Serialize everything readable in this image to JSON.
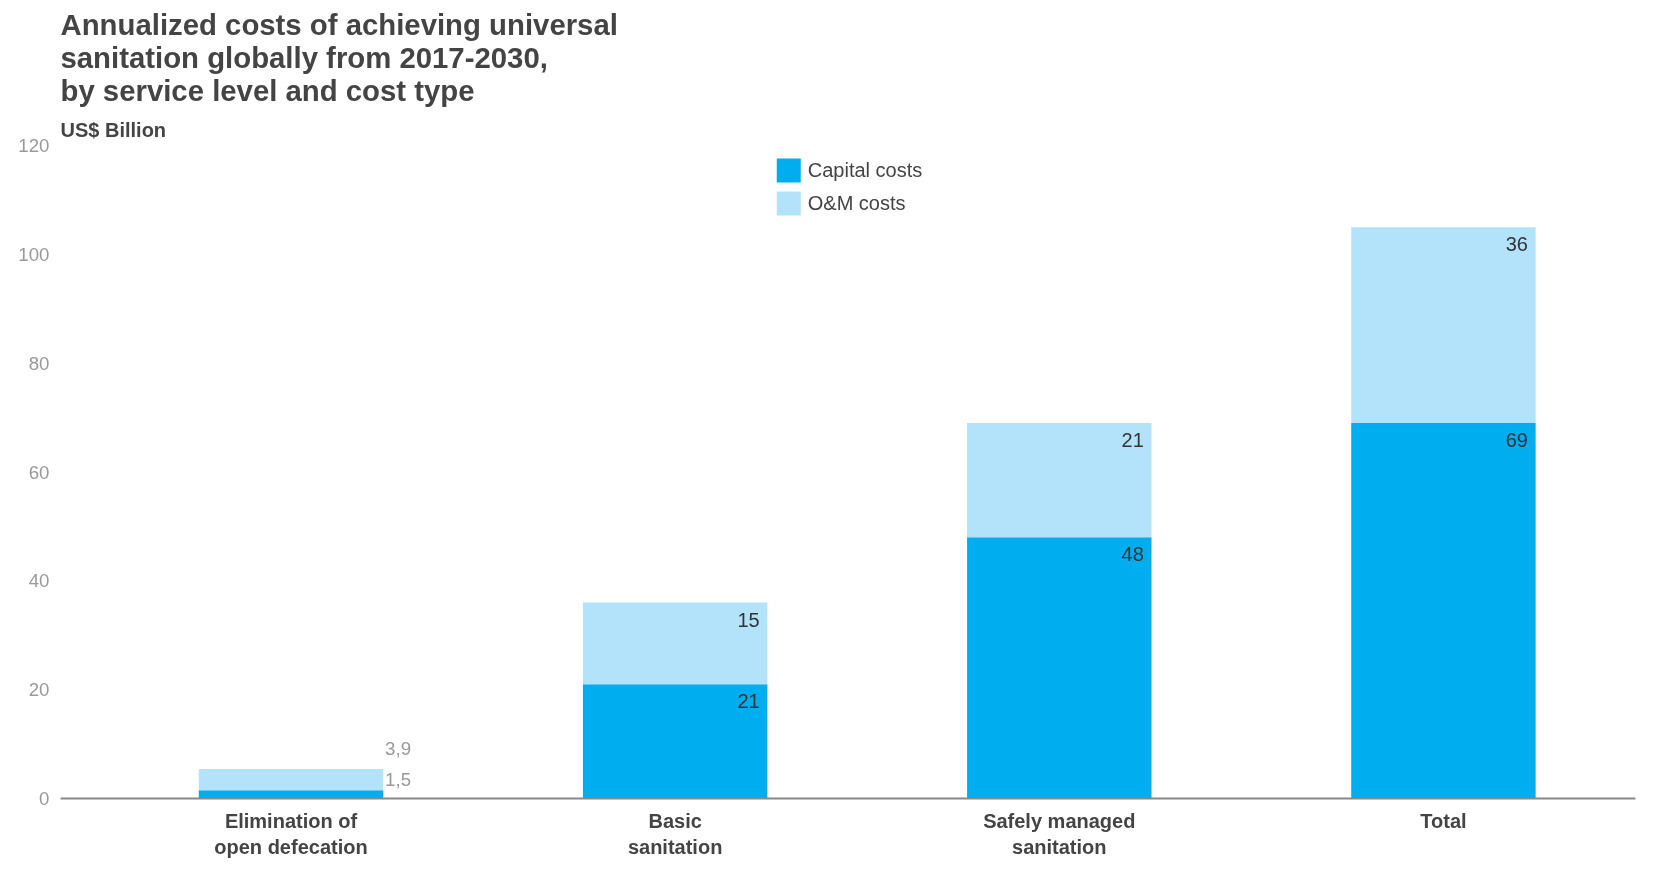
{
  "chart_data": {
    "type": "bar",
    "title": "Annualized costs of achieving universal\nsanitation globally from 2017-2030,\nby service level and cost type",
    "ylabel": "US$ Billion",
    "categories": [
      "Elimination of\nopen defecation",
      "Basic\nsanitation",
      "Safely managed\nsanitation",
      "Total"
    ],
    "stacked": true,
    "series": [
      {
        "name": "Capital costs",
        "color": "#00aeef",
        "values": [
          1.5,
          21,
          48,
          69
        ],
        "value_labels": [
          "1,5",
          "21",
          "48",
          "69"
        ]
      },
      {
        "name": "O&M costs",
        "color": "#b3e3fa",
        "values": [
          3.9,
          15,
          21,
          36
        ],
        "value_labels": [
          "3,9",
          "15",
          "21",
          "36"
        ]
      }
    ],
    "ylim": [
      0,
      120
    ],
    "yticks": [
      0,
      20,
      40,
      60,
      80,
      100,
      120
    ],
    "grid": false,
    "legend": "top"
  }
}
